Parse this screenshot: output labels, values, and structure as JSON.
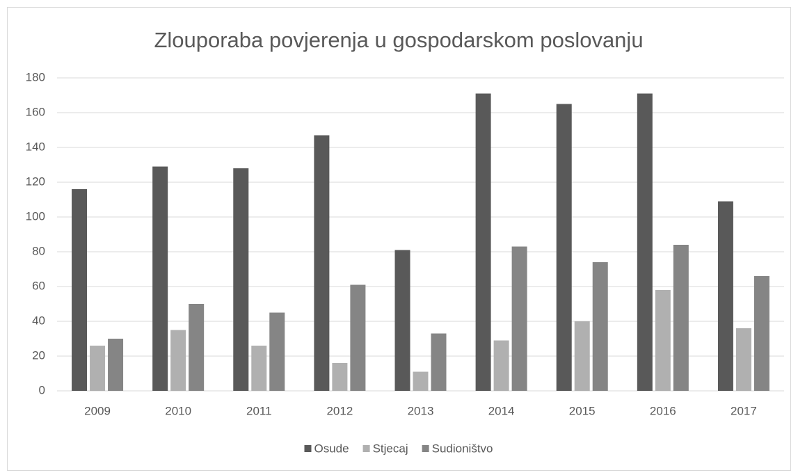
{
  "chart_data": {
    "type": "bar",
    "title": "Zlouporaba povjerenja u gospodarskom poslovanju",
    "categories": [
      "2009",
      "2010",
      "2011",
      "2012",
      "2013",
      "2014",
      "2015",
      "2016",
      "2017"
    ],
    "series": [
      {
        "name": "Osude",
        "color": "#595959",
        "values": [
          116,
          129,
          128,
          147,
          81,
          171,
          165,
          171,
          109
        ]
      },
      {
        "name": "Stjecaj",
        "color": "#b0b0b0",
        "values": [
          26,
          35,
          26,
          16,
          11,
          29,
          40,
          58,
          36
        ]
      },
      {
        "name": "Sudioništvo",
        "color": "#858585",
        "values": [
          30,
          50,
          45,
          61,
          33,
          83,
          74,
          84,
          66
        ]
      }
    ],
    "ylim": [
      0,
      180
    ],
    "yticks": [
      0,
      20,
      40,
      60,
      80,
      100,
      120,
      140,
      160,
      180
    ],
    "grid": true,
    "legend": "bottom"
  }
}
